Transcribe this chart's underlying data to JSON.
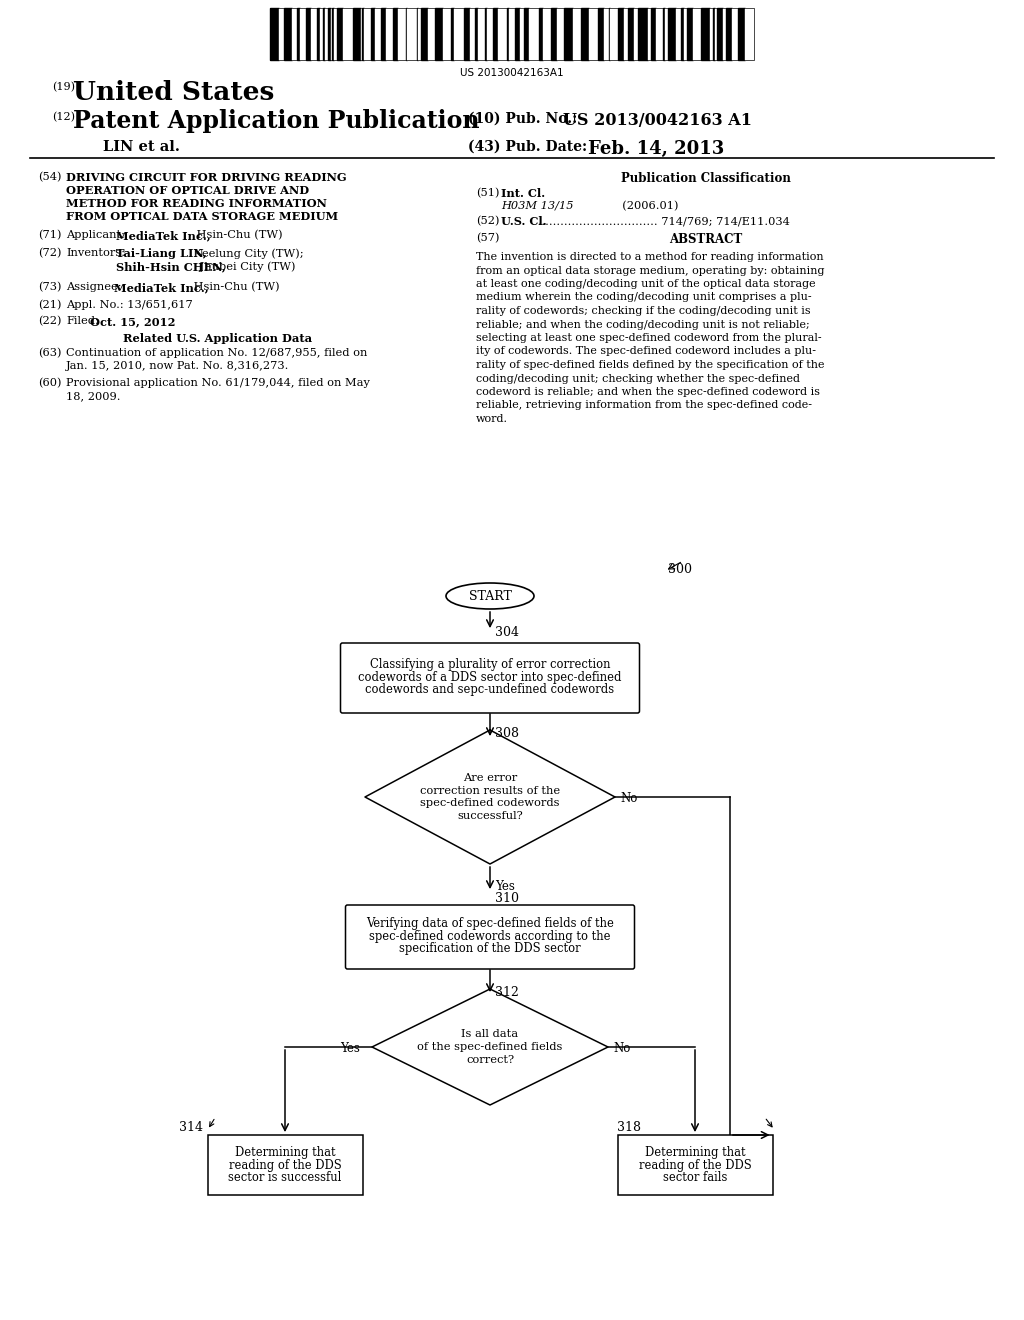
{
  "bg_color": "#ffffff",
  "barcode_text": "US 20130042163A1",
  "title_19": "(19)",
  "title_us": "United States",
  "title_12": "(12)",
  "title_pap": "Patent Application Publication",
  "title_10_a": "(10) Pub. No.: ",
  "title_10_b": "US 2013/0042163 A1",
  "title_lin": "LIN et al.",
  "title_43": "(43) Pub. Date:",
  "title_date": "Feb. 14, 2013",
  "field54_num": "(54)",
  "field54_text": "DRIVING CIRCUIT FOR DRIVING READING\nOPERATION OF OPTICAL DRIVE AND\nMETHOD FOR READING INFORMATION\nFROM OPTICAL DATA STORAGE MEDIUM",
  "pub_class_title": "Publication Classification",
  "field51_num": "(51)",
  "field51_label": "Int. Cl.",
  "field51_code": "H03M 13/15",
  "field51_year": "(2006.01)",
  "field52_num": "(52)",
  "field52_label": "U.S. Cl.",
  "field52_dots": "................................",
  "field52_value": "714/769; 714/E11.034",
  "field71_num": "(71)",
  "field71_label": "Applicant:",
  "field71_bold": "MediaTek Inc.,",
  "field71_rest": " Hsin-Chu (TW)",
  "field72_num": "(72)",
  "field72_label": "Inventors:",
  "field72_bold1": "Tai-Liang LIN,",
  "field72_rest1": " Keelung City (TW);",
  "field72_bold2": "Shih-Hsin CHEN,",
  "field72_rest2": " Jhubei City (TW)",
  "field73_num": "(73)",
  "field73_label": "Assignee:",
  "field73_bold": "MediaTek Inc.,",
  "field73_rest": " Hsin-Chu (TW)",
  "field21_num": "(21)",
  "field21_text": "Appl. No.: 13/651,617",
  "field22_num": "(22)",
  "field22_label": "Filed:",
  "field22_date": "Oct. 15, 2012",
  "related_title": "Related U.S. Application Data",
  "field63_num": "(63)",
  "field63_text": "Continuation of application No. 12/687,955, filed on\nJan. 15, 2010, now Pat. No. 8,316,273.",
  "field60_num": "(60)",
  "field60_text": "Provisional application No. 61/179,044, filed on May\n18, 2009.",
  "abstract_num": "(57)",
  "abstract_title": "ABSTRACT",
  "abstract_lines": [
    "The invention is directed to a method for reading information",
    "from an optical data storage medium, operating by: obtaining",
    "at least one coding/decoding unit of the optical data storage",
    "medium wherein the coding/decoding unit comprises a plu-",
    "rality of codewords; checking if the coding/decoding unit is",
    "reliable; and when the coding/decoding unit is not reliable;",
    "selecting at least one spec-defined codeword from the plural-",
    "ity of codewords. The spec-defined codeword includes a plu-",
    "rality of spec-defined fields defined by the specification of the",
    "coding/decoding unit; checking whether the spec-defined",
    "codeword is reliable; and when the spec-defined codeword is",
    "reliable, retrieving information from the spec-defined code-",
    "word."
  ],
  "flow_start_text": "START",
  "flow_300": "300",
  "flow_304": "304",
  "flow_box1_line1": "Classifying a plurality of error correction",
  "flow_box1_line2": "codewords of a DDS sector into spec-defined",
  "flow_box1_line3": "codewords and sepc-undefined codewords",
  "flow_diamond1_text": "Are error\ncorrection results of the\nspec-defined codewords\nsuccessful?",
  "flow_308": "308",
  "flow_no1": "No",
  "flow_yes1": "Yes",
  "flow_310": "310",
  "flow_box2_line1": "Verifying data of spec-defined fields of the",
  "flow_box2_line2": "spec-defined codewords according to the",
  "flow_box2_line3": "specification of the DDS sector",
  "flow_diamond2_text": "Is all data\nof the spec-defined fields\ncorrect?",
  "flow_312": "312",
  "flow_yes2": "Yes",
  "flow_no2": "No",
  "flow_314": "314",
  "flow_box3_line1": "Determining that",
  "flow_box3_line2": "reading of the DDS",
  "flow_box3_line3": "sector is successful",
  "flow_318": "318",
  "flow_box4_line1": "Determining that",
  "flow_box4_line2": "reading of the DDS",
  "flow_box4_line3": "sector fails"
}
